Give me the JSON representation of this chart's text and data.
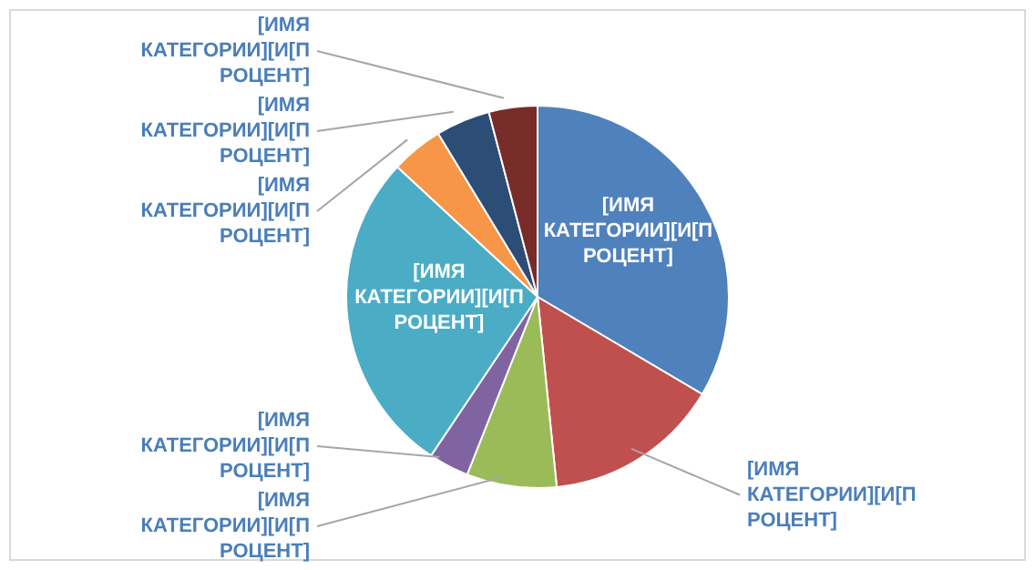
{
  "chart_data": {
    "type": "pie",
    "categories": [
      "[ИМЯ КАТЕГОРИИ][И[ПРОЦЕНТ]",
      "[ИМЯ КАТЕГОРИИ][И[ПРОЦЕНТ]",
      "[ИМЯ КАТЕГОРИИ][И[ПРОЦЕНТ]",
      "[ИМЯ КАТЕГОРИИ][И[ПРОЦЕНТ]",
      "[ИМЯ КАТЕГОРИИ][И[ПРОЦЕНТ]",
      "[ИМЯ КАТЕГОРИИ][И[ПРОЦЕНТ]",
      "[ИМЯ КАТЕГОРИИ][И[ПРОЦЕНТ]",
      "[ИМЯ КАТЕГОРИИ][И[ПРОЦЕНТ]"
    ],
    "values": [
      33.5,
      14.9,
      7.6,
      3.4,
      27.5,
      4.4,
      4.6,
      4.1
    ],
    "colors": [
      "#4f81bd",
      "#c0504d",
      "#9bbb59",
      "#8064a2",
      "#4bacc6",
      "#f79646",
      "#2c4d75",
      "#772c2a"
    ]
  }
}
